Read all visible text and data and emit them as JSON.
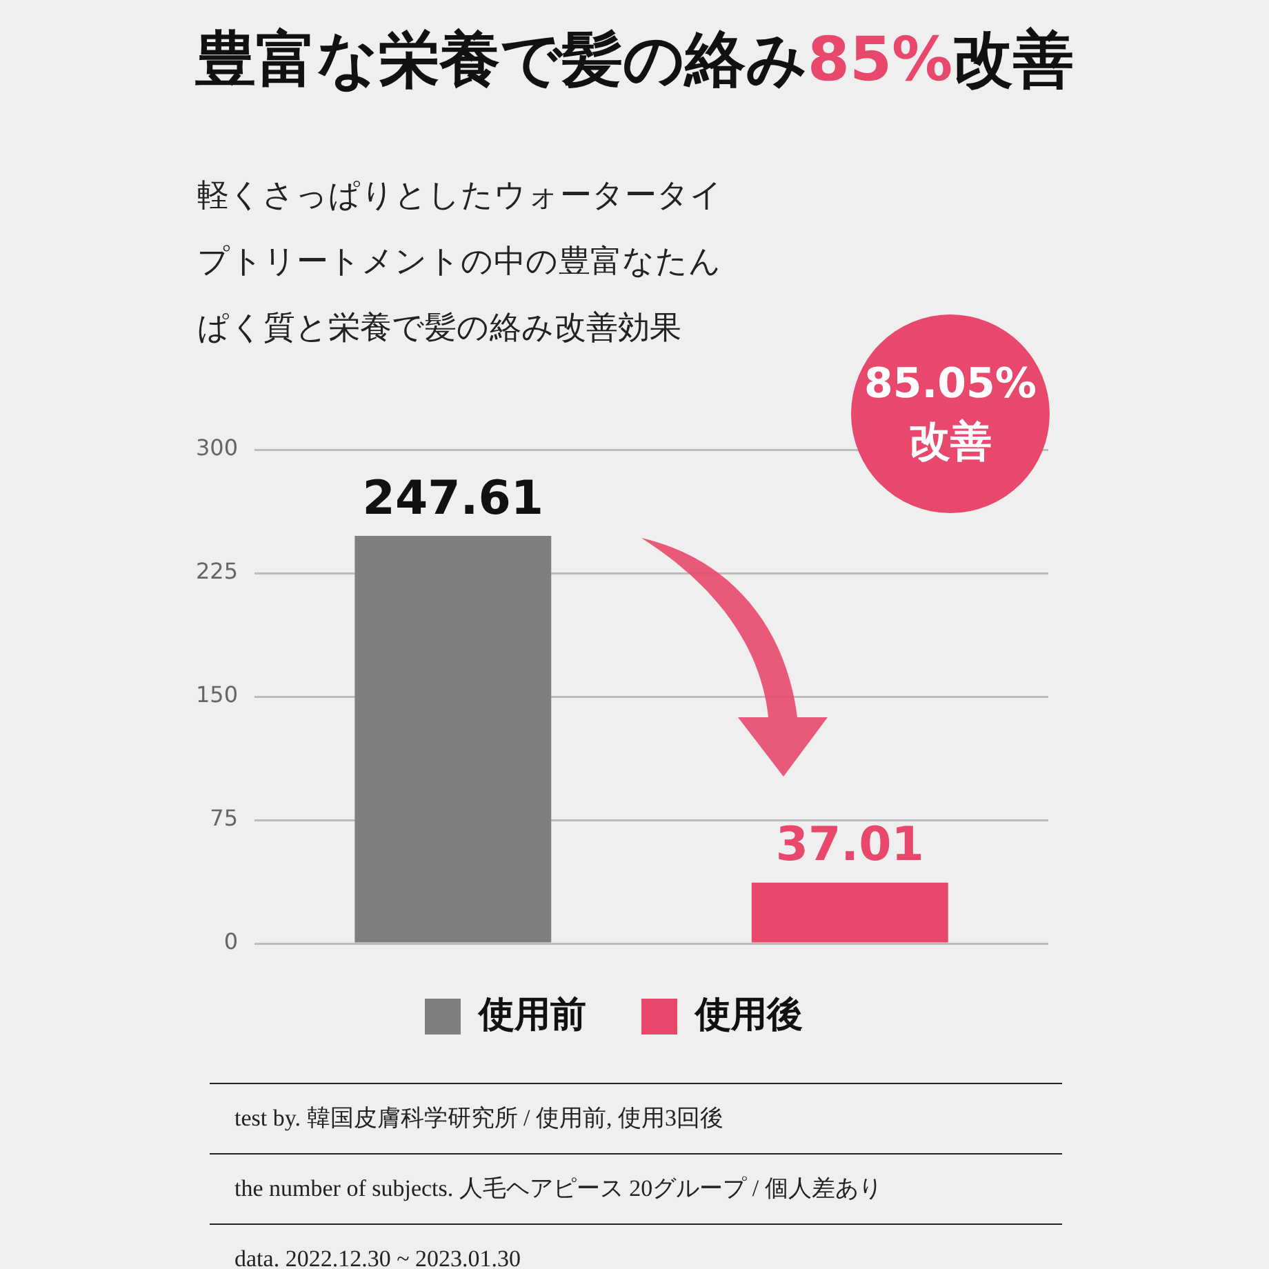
{
  "chart_data": {
    "type": "bar",
    "title": "豊富な栄養で髪の絡み85%改善",
    "subtitle": "軽くさっぱりとしたウォータータイプトリートメントの中の豊富なたんぱく質と栄養で髪の絡み改善効果",
    "categories": [
      null,
      null
    ],
    "series": [
      {
        "name": "使用前",
        "color": "#7f7f7f",
        "values": [
          247.61,
          null
        ]
      },
      {
        "name": "使用後",
        "color": "#e8486b",
        "values": [
          null,
          37.01
        ]
      }
    ],
    "ylim": [
      0,
      300
    ],
    "yticks": [
      0,
      75,
      150,
      225,
      300
    ],
    "grid": "y",
    "legend": "bottom",
    "tick_labels": "y",
    "data_labels": true,
    "annotations": [
      "85.05%\n改善",
      "test by.  韓国皮膚科学研究所 / 使用前, 使用3回後",
      "the number of subjects.  人毛ヘアピース 20グループ / 個人差あり",
      "data.  2022.12.30 ~ 2023.01.30"
    ]
  }
}
